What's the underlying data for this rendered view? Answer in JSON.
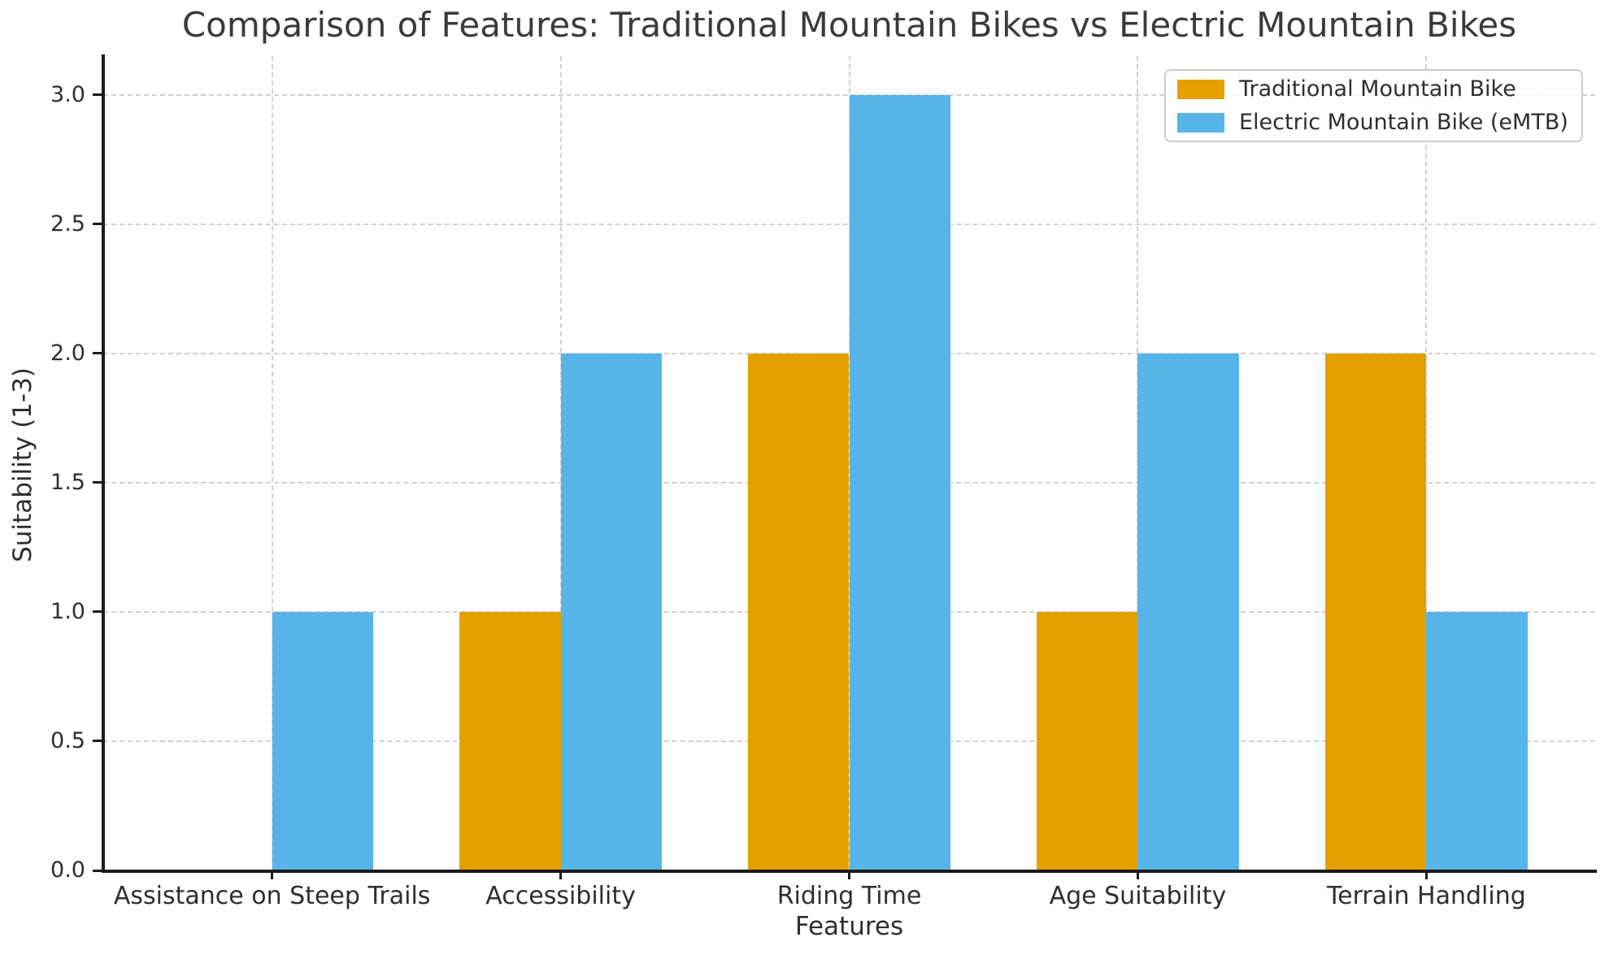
{
  "chart_data": {
    "type": "bar",
    "title": "Comparison of Features: Traditional Mountain Bikes vs Electric Mountain Bikes",
    "xlabel": "Features",
    "ylabel": "Suitability (1-3)",
    "categories": [
      "Assistance on Steep Trails",
      "Accessibility",
      "Riding Time",
      "Age Suitability",
      "Terrain Handling"
    ],
    "series": [
      {
        "name": "Traditional Mountain Bike",
        "color": "#E69F00",
        "values": [
          0,
          1,
          2,
          1,
          2
        ]
      },
      {
        "name": "Electric Mountain Bike (eMTB)",
        "color": "#56B4E9",
        "values": [
          1,
          2,
          3,
          2,
          1
        ]
      }
    ],
    "ylim": [
      0,
      3.15
    ],
    "yticks": [
      0.0,
      0.5,
      1.0,
      1.5,
      2.0,
      2.5,
      3.0
    ],
    "ytick_labels": [
      "0.0",
      "0.5",
      "1.0",
      "1.5",
      "2.0",
      "2.5",
      "3.0"
    ],
    "grid": "dashed",
    "grid_color": "#d0d0d0",
    "spine_color": "#1a1a1a",
    "legend_position": "upper-right"
  }
}
